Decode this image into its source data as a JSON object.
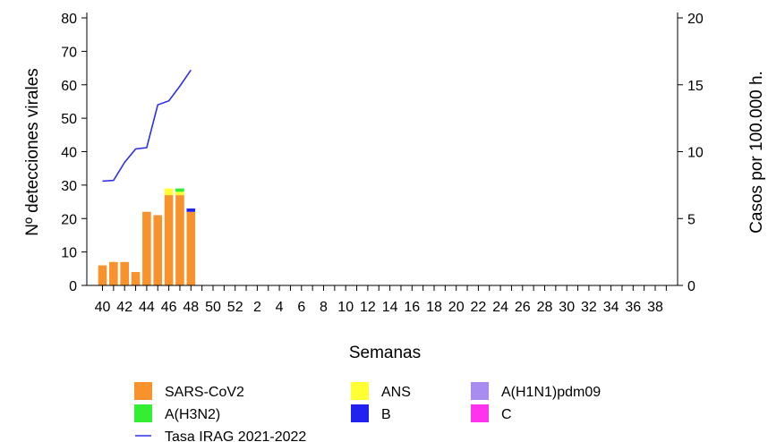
{
  "chart_data": {
    "type": "bar",
    "title": "",
    "xlabel": "Semanas",
    "ylabel_left": "Nº detecciones virales",
    "ylabel_right": "Casos por 100.000 h.",
    "ylim_left": [
      0,
      80
    ],
    "ylim_right": [
      0,
      20
    ],
    "yticks_left": [
      0,
      10,
      20,
      30,
      40,
      50,
      60,
      70,
      80
    ],
    "yticks_right": [
      0,
      5,
      10,
      15,
      20
    ],
    "weeks": [
      40,
      41,
      42,
      43,
      44,
      45,
      46,
      47,
      48,
      49,
      50,
      51,
      52,
      1,
      2,
      3,
      4,
      5,
      6,
      7,
      8,
      9,
      10,
      11,
      12,
      13,
      14,
      15,
      16,
      17,
      18,
      19,
      20,
      21,
      22,
      23,
      24,
      25,
      26,
      27,
      28,
      29,
      30,
      31,
      32,
      33,
      34,
      35,
      36,
      37,
      38,
      39
    ],
    "tick_labels": [
      "40",
      "42",
      "44",
      "46",
      "48",
      "50",
      "52",
      "2",
      "4",
      "6",
      "8",
      "10",
      "12",
      "14",
      "16",
      "18",
      "20",
      "22",
      "24",
      "26",
      "28",
      "30",
      "32",
      "34",
      "36",
      "38"
    ],
    "stack_series": [
      {
        "name": "SARS-CoV2",
        "color": "#F7922D",
        "values": [
          6,
          7,
          7,
          4,
          22,
          21,
          27,
          27,
          22
        ]
      },
      {
        "name": "ANS",
        "color": "#FFFF33",
        "values": [
          0,
          0,
          0,
          0,
          0,
          0,
          2,
          1,
          0
        ]
      },
      {
        "name": "A(H1N1)pdm09",
        "color": "#A98CF0",
        "values": [
          0,
          0,
          0,
          0,
          0,
          0,
          0,
          0,
          0
        ]
      },
      {
        "name": "A(H3N2)",
        "color": "#33EE33",
        "values": [
          0,
          0,
          0,
          0,
          0,
          0,
          0,
          1,
          0
        ]
      },
      {
        "name": "B",
        "color": "#2222EE",
        "values": [
          0,
          0,
          0,
          0,
          0,
          0,
          0,
          0,
          1
        ]
      },
      {
        "name": "C",
        "color": "#FF33EE",
        "values": [
          0,
          0,
          0,
          0,
          0,
          0,
          0,
          0,
          0
        ]
      }
    ],
    "line_series": {
      "name": "Tasa IRAG 2021-2022",
      "color": "#2E2EE8",
      "axis": "right",
      "values": [
        7.8,
        7.85,
        9.2,
        10.2,
        10.3,
        13.5,
        13.8,
        14.9,
        16.1
      ]
    },
    "legend_placement": "bottom",
    "grid": false
  }
}
